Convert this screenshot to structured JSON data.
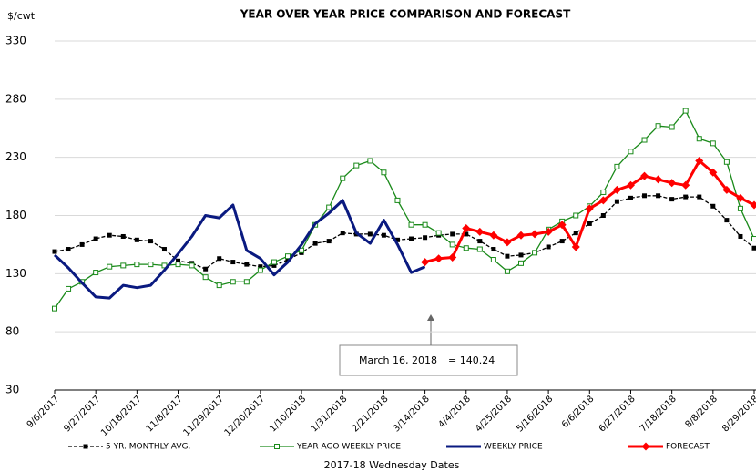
{
  "chart_data": {
    "type": "line",
    "title": "YEAR OVER YEAR PRICE COMPARISON AND FORECAST",
    "y_label": "$/cwt",
    "x_label": "2017-18 Wednesday Dates",
    "annotation": {
      "date": "March 16, 2018",
      "value_text": "= 140.24"
    },
    "categories": [
      "9/6/2017",
      null,
      null,
      "9/27/2017",
      null,
      null,
      "10/18/2017",
      null,
      null,
      "11/8/2017",
      null,
      null,
      "11/29/2017",
      null,
      null,
      "12/20/2017",
      null,
      null,
      "1/10/2018",
      null,
      null,
      "1/31/2018",
      null,
      null,
      "2/21/2018",
      null,
      null,
      "3/14/2018",
      null,
      null,
      "4/4/2018",
      null,
      null,
      "4/25/2018",
      null,
      null,
      "5/16/2018",
      null,
      null,
      "6/6/2018",
      null,
      null,
      "6/27/2018",
      null,
      null,
      "7/18/2018",
      null,
      null,
      "8/8/2018",
      null,
      null,
      "8/29/2018"
    ],
    "ylim": [
      30,
      330
    ],
    "yticks": [
      30,
      80,
      130,
      180,
      230,
      280,
      330
    ],
    "grid": true,
    "series": [
      {
        "name": "5 YR. MONTHLY AVG.",
        "color": "#000000",
        "marker": "filled-square",
        "dash": true,
        "values": [
          149,
          151,
          155,
          160,
          163,
          162,
          159,
          158,
          151,
          141,
          139,
          134,
          143,
          140,
          138,
          136,
          137,
          142,
          148,
          156,
          158,
          165,
          164,
          164,
          163,
          159,
          160,
          161,
          163,
          164,
          164,
          158,
          151,
          145,
          146,
          148,
          153,
          158,
          165,
          173,
          180,
          192,
          195,
          197,
          197,
          194,
          196,
          196,
          188,
          176,
          162,
          152
        ]
      },
      {
        "name": "YEAR AGO WEEKLY PRICE",
        "color": "#1a8a1a",
        "marker": "open-square",
        "values": [
          100,
          117,
          123,
          131,
          136,
          137,
          138,
          138,
          137,
          138,
          137,
          127,
          120,
          123,
          123,
          133,
          140,
          145,
          150,
          172,
          187,
          212,
          223,
          227,
          217,
          193,
          172,
          172,
          165,
          155,
          152,
          151,
          142,
          132,
          139,
          148,
          168,
          175,
          180,
          188,
          200,
          222,
          235,
          245,
          257,
          256,
          270,
          246,
          242,
          226,
          186,
          160
        ]
      },
      {
        "name": "WEEKLY PRICE",
        "color": "#0a1a80",
        "marker": "none",
        "values": [
          146,
          135,
          122,
          110,
          109,
          120,
          118,
          120,
          133,
          147,
          162,
          180,
          178,
          189,
          150,
          143,
          129,
          140,
          155,
          173,
          182,
          193,
          165,
          156,
          176,
          155,
          131,
          136,
          null,
          null,
          null,
          null,
          null,
          null,
          null,
          null,
          null,
          null,
          null,
          null,
          null,
          null,
          null,
          null,
          null,
          null,
          null,
          null,
          null,
          null,
          null,
          null
        ]
      },
      {
        "name": "FORECAST",
        "color": "#ff0000",
        "marker": "filled-diamond",
        "values": [
          null,
          null,
          null,
          null,
          null,
          null,
          null,
          null,
          null,
          null,
          null,
          null,
          null,
          null,
          null,
          null,
          null,
          null,
          null,
          null,
          null,
          null,
          null,
          null,
          null,
          null,
          null,
          140,
          143,
          144,
          169,
          166,
          163,
          157,
          163,
          164,
          166,
          172,
          153,
          186,
          193,
          202,
          206,
          214,
          211,
          208,
          206,
          227,
          217,
          202,
          195,
          189
        ]
      }
    ]
  }
}
